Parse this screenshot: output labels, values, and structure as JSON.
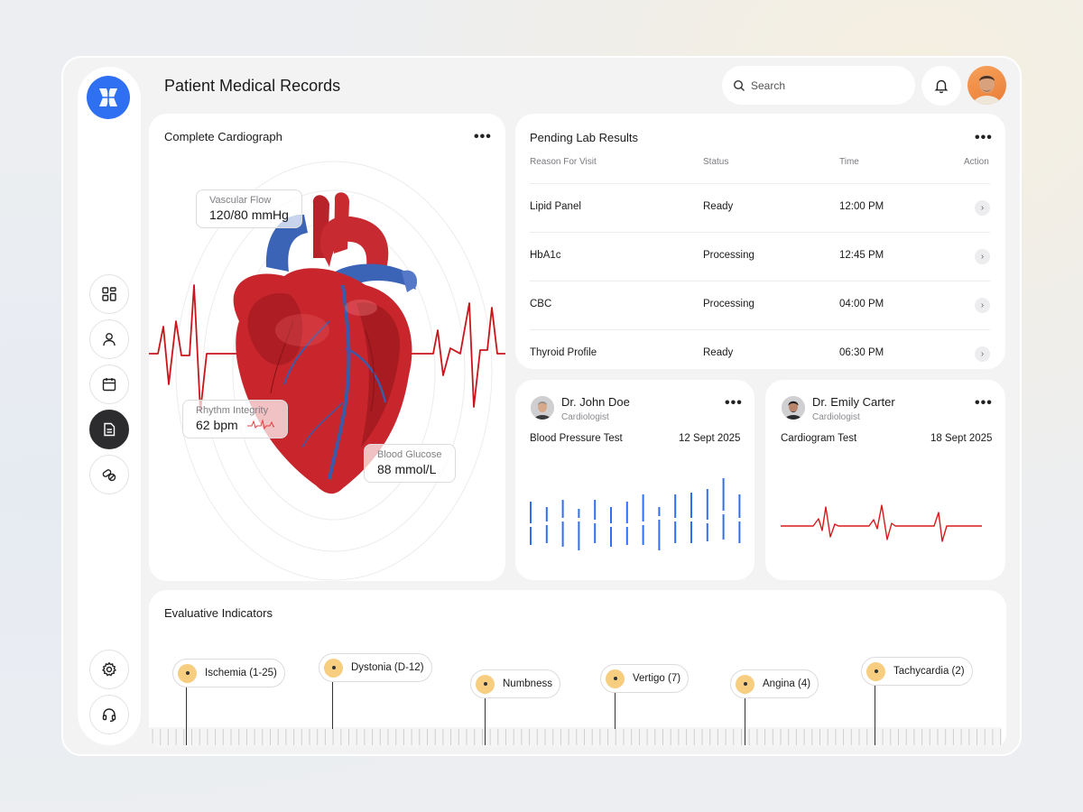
{
  "header": {
    "title": "Patient Medical Records",
    "search_placeholder": "Search"
  },
  "sidebar": {
    "items": [
      {
        "icon": "dashboard-icon"
      },
      {
        "icon": "user-icon"
      },
      {
        "icon": "calendar-icon"
      },
      {
        "icon": "document-icon",
        "active": true
      },
      {
        "icon": "pills-icon"
      },
      {
        "icon": "gear-icon"
      },
      {
        "icon": "headset-icon"
      }
    ]
  },
  "cardiograph": {
    "title": "Complete Cardiograph",
    "vascular": {
      "label": "Vascular Flow",
      "value": "120/80 mmHg"
    },
    "rhythm": {
      "label": "Rhythm Integrity",
      "value": "62 bpm"
    },
    "glucose": {
      "label": "Blood Glucose",
      "value": "88 mmol/L"
    }
  },
  "lab": {
    "title": "Pending Lab Results",
    "columns": [
      "Reason For Visit",
      "Status",
      "Time",
      "Action"
    ],
    "rows": [
      {
        "reason": "Lipid Panel",
        "status": "Ready",
        "time": "12:00 PM"
      },
      {
        "reason": "HbA1c",
        "status": "Processing",
        "time": "12:45 PM"
      },
      {
        "reason": "CBC",
        "status": "Processing",
        "time": "04:00 PM"
      },
      {
        "reason": "Thyroid Profile",
        "status": "Ready",
        "time": "06:30 PM"
      }
    ]
  },
  "doctors": [
    {
      "name": "Dr. John Doe",
      "role": "Cardiologist",
      "test": "Blood Pressure Test",
      "date": "12 Sept 2025"
    },
    {
      "name": "Dr. Emily Carter",
      "role": "Cardiologist",
      "test": "Cardiogram Test",
      "date": "18 Sept 2025"
    }
  ],
  "indicators": {
    "title": "Evaluative Indicators",
    "items": [
      "Ischemia (1-25)",
      "Dystonia (D-12)",
      "Numbness",
      "Vertigo (7)",
      "Angina (4)",
      "Tachycardia (2)"
    ]
  },
  "colors": {
    "accent": "#2f6ff1",
    "ecg_red": "#d81a1a",
    "indicator_dot": "#f7cd80"
  }
}
